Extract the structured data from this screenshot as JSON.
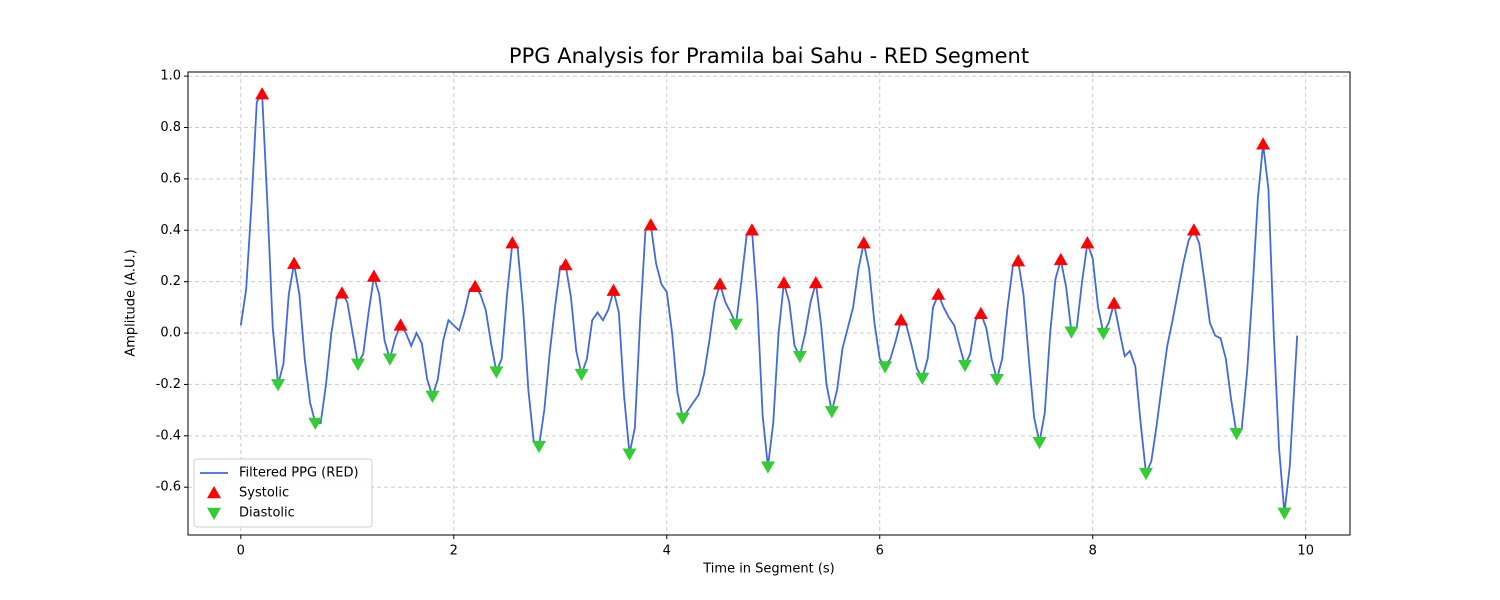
{
  "chart_data": {
    "type": "line",
    "title": "PPG Analysis for Pramila bai Sahu - RED Segment",
    "xlabel": "Time in Segment (s)",
    "ylabel": "Amplitude (A.U.)",
    "xlim": [
      -0.496,
      10.416
    ],
    "ylim": [
      -0.786,
      1.016
    ],
    "xticks": [
      0,
      2,
      4,
      6,
      8,
      10
    ],
    "yticks": [
      -0.6,
      -0.4,
      -0.2,
      {
        "value": 0,
        "label": "0.0"
      },
      0.2,
      0.4,
      0.6,
      0.8,
      {
        "value": 1,
        "label": "1.0"
      }
    ],
    "grid": true,
    "legend": "lower left",
    "series": [
      {
        "name": "Filtered PPG (RED)",
        "type": "line",
        "color": "#4169e1",
        "x": [
          0,
          0.05,
          0.1,
          0.15,
          0.2,
          0.25,
          0.3,
          0.35,
          0.4,
          0.45,
          0.5,
          0.55,
          0.6,
          0.65,
          0.7,
          0.75,
          0.8,
          0.85,
          0.9,
          0.95,
          1.0,
          1.05,
          1.1,
          1.15,
          1.2,
          1.25,
          1.3,
          1.35,
          1.4,
          1.45,
          1.5,
          1.55,
          1.6,
          1.65,
          1.7,
          1.75,
          1.8,
          1.85,
          1.9,
          1.95,
          2.0,
          2.05,
          2.1,
          2.15,
          2.2,
          2.25,
          2.3,
          2.35,
          2.4,
          2.45,
          2.5,
          2.55,
          2.6,
          2.65,
          2.7,
          2.75,
          2.8,
          2.85,
          2.9,
          2.95,
          3.0,
          3.05,
          3.1,
          3.15,
          3.2,
          3.25,
          3.3,
          3.35,
          3.4,
          3.45,
          3.5,
          3.55,
          3.6,
          3.65,
          3.7,
          3.75,
          3.8,
          3.85,
          3.9,
          3.95,
          4.0,
          4.05,
          4.1,
          4.15,
          4.2,
          4.25,
          4.3,
          4.35,
          4.4,
          4.45,
          4.5,
          4.55,
          4.6,
          4.65,
          4.7,
          4.75,
          4.8,
          4.85,
          4.9,
          4.95,
          5.0,
          5.05,
          5.1,
          5.15,
          5.2,
          5.25,
          5.3,
          5.35,
          5.4,
          5.45,
          5.5,
          5.55,
          5.6,
          5.65,
          5.7,
          5.75,
          5.8,
          5.85,
          5.9,
          5.95,
          6.0,
          6.05,
          6.1,
          6.15,
          6.2,
          6.25,
          6.3,
          6.35,
          6.4,
          6.45,
          6.5,
          6.55,
          6.6,
          6.65,
          6.7,
          6.75,
          6.8,
          6.85,
          6.9,
          6.95,
          7.0,
          7.05,
          7.1,
          7.15,
          7.2,
          7.25,
          7.3,
          7.35,
          7.4,
          7.45,
          7.5,
          7.55,
          7.6,
          7.65,
          7.7,
          7.75,
          7.8,
          7.85,
          7.9,
          7.95,
          8.0,
          8.05,
          8.1,
          8.15,
          8.2,
          8.25,
          8.3,
          8.35,
          8.4,
          8.45,
          8.5,
          8.55,
          8.6,
          8.65,
          8.7,
          8.75,
          8.8,
          8.85,
          8.9,
          8.95,
          9.0,
          9.05,
          9.1,
          9.15,
          9.2,
          9.25,
          9.3,
          9.35,
          9.4,
          9.45,
          9.5,
          9.55,
          9.6,
          9.65,
          9.7,
          9.75,
          9.8,
          9.85,
          9.92
        ],
        "values": [
          0.03,
          0.17,
          0.5,
          0.9,
          0.93,
          0.5,
          0.02,
          -0.2,
          -0.12,
          0.15,
          0.27,
          0.15,
          -0.1,
          -0.27,
          -0.35,
          -0.35,
          -0.2,
          0.0,
          0.13,
          0.155,
          0.12,
          0.0,
          -0.12,
          -0.08,
          0.08,
          0.22,
          0.15,
          -0.03,
          -0.1,
          -0.02,
          0.03,
          0.0,
          -0.05,
          0.0,
          -0.04,
          -0.18,
          -0.245,
          -0.18,
          -0.03,
          0.05,
          0.03,
          0.01,
          0.08,
          0.17,
          0.18,
          0.15,
          0.09,
          -0.04,
          -0.15,
          -0.1,
          0.15,
          0.35,
          0.33,
          0.1,
          -0.22,
          -0.42,
          -0.44,
          -0.3,
          -0.08,
          0.1,
          0.26,
          0.265,
          0.14,
          -0.07,
          -0.16,
          -0.1,
          0.05,
          0.08,
          0.05,
          0.09,
          0.165,
          0.08,
          -0.25,
          -0.47,
          -0.37,
          0.05,
          0.4,
          0.42,
          0.27,
          0.19,
          0.16,
          0.0,
          -0.23,
          -0.33,
          -0.3,
          -0.27,
          -0.24,
          -0.16,
          -0.03,
          0.12,
          0.19,
          0.12,
          0.08,
          0.035,
          0.2,
          0.38,
          0.4,
          0.12,
          -0.32,
          -0.52,
          -0.35,
          0.0,
          0.195,
          0.12,
          -0.05,
          -0.09,
          0.0,
          0.12,
          0.195,
          0.03,
          -0.2,
          -0.305,
          -0.22,
          -0.06,
          0.02,
          0.1,
          0.25,
          0.35,
          0.25,
          0.04,
          -0.1,
          -0.13,
          -0.1,
          -0.03,
          0.05,
          0.03,
          -0.05,
          -0.14,
          -0.175,
          -0.1,
          0.1,
          0.15,
          0.1,
          0.06,
          0.03,
          -0.05,
          -0.125,
          -0.08,
          0.05,
          0.075,
          0.02,
          -0.1,
          -0.18,
          -0.1,
          0.1,
          0.26,
          0.28,
          0.15,
          -0.1,
          -0.33,
          -0.425,
          -0.31,
          0.0,
          0.21,
          0.285,
          0.18,
          0.005,
          0.02,
          0.2,
          0.35,
          0.29,
          0.1,
          0.0,
          0.04,
          0.115,
          0.01,
          -0.09,
          -0.07,
          -0.13,
          -0.35,
          -0.545,
          -0.5,
          -0.36,
          -0.2,
          -0.05,
          0.05,
          0.16,
          0.27,
          0.36,
          0.4,
          0.35,
          0.2,
          0.04,
          -0.01,
          -0.02,
          -0.1,
          -0.26,
          -0.39,
          -0.37,
          -0.15,
          0.16,
          0.52,
          0.735,
          0.56,
          0.0,
          -0.45,
          -0.7,
          -0.52,
          -0.01
        ]
      },
      {
        "name": "Systolic",
        "type": "scatter",
        "marker": "triangle-up",
        "color": "#ff0000",
        "x": [
          0.2,
          0.5,
          0.95,
          1.25,
          1.5,
          2.2,
          2.55,
          3.05,
          3.5,
          3.85,
          4.5,
          4.8,
          5.1,
          5.4,
          5.85,
          6.2,
          6.55,
          6.95,
          7.3,
          7.7,
          7.95,
          8.2,
          8.95,
          9.6
        ],
        "values": [
          0.93,
          0.27,
          0.155,
          0.22,
          0.03,
          0.18,
          0.35,
          0.265,
          0.165,
          0.42,
          0.19,
          0.4,
          0.195,
          0.195,
          0.35,
          0.05,
          0.15,
          0.075,
          0.28,
          0.285,
          0.35,
          0.115,
          0.4,
          0.735
        ]
      },
      {
        "name": "Diastolic",
        "type": "scatter",
        "marker": "triangle-down",
        "color": "#32cd32",
        "x": [
          0.35,
          0.7,
          1.1,
          1.4,
          1.8,
          2.4,
          2.8,
          3.2,
          3.65,
          4.15,
          4.65,
          4.95,
          5.25,
          5.55,
          6.05,
          6.4,
          6.8,
          7.1,
          7.5,
          7.8,
          8.1,
          8.5,
          9.35,
          9.8
        ],
        "values": [
          -0.2,
          -0.35,
          -0.12,
          -0.1,
          -0.245,
          -0.15,
          -0.44,
          -0.16,
          -0.47,
          -0.33,
          0.035,
          -0.52,
          -0.09,
          -0.305,
          -0.13,
          -0.175,
          -0.125,
          -0.18,
          -0.425,
          0.005,
          0.0,
          -0.545,
          -0.39,
          -0.7
        ]
      }
    ]
  }
}
